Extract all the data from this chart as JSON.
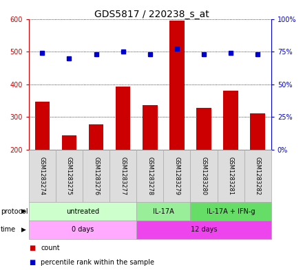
{
  "title": "GDS5817 / 220238_s_at",
  "samples": [
    "GSM1283274",
    "GSM1283275",
    "GSM1283276",
    "GSM1283277",
    "GSM1283278",
    "GSM1283279",
    "GSM1283280",
    "GSM1283281",
    "GSM1283282"
  ],
  "counts": [
    347,
    243,
    278,
    392,
    337,
    594,
    327,
    381,
    310
  ],
  "percentiles": [
    74,
    70,
    73,
    75,
    73,
    77,
    73,
    74,
    73
  ],
  "ylim_left": [
    200,
    600
  ],
  "ylim_right": [
    0,
    100
  ],
  "yticks_left": [
    200,
    300,
    400,
    500,
    600
  ],
  "yticks_right": [
    0,
    25,
    50,
    75,
    100
  ],
  "bar_color": "#cc0000",
  "dot_color": "#0000cc",
  "bar_bottom": 200,
  "protocol_groups": [
    {
      "label": "untreated",
      "start": 0,
      "end": 4,
      "color": "#ccffcc",
      "border": "#aaaaaa"
    },
    {
      "label": "IL-17A",
      "start": 4,
      "end": 6,
      "color": "#99ee99",
      "border": "#aaaaaa"
    },
    {
      "label": "IL-17A + IFN-g",
      "start": 6,
      "end": 9,
      "color": "#66dd66",
      "border": "#aaaaaa"
    }
  ],
  "time_groups": [
    {
      "label": "0 days",
      "start": 0,
      "end": 4,
      "color": "#ffaaff",
      "border": "#aaaaaa"
    },
    {
      "label": "12 days",
      "start": 4,
      "end": 9,
      "color": "#ee44ee",
      "border": "#aaaaaa"
    }
  ],
  "sample_box_color": "#dddddd",
  "sample_box_border": "#aaaaaa",
  "grid_color": "#000000",
  "background_color": "#ffffff",
  "title_fontsize": 10,
  "tick_fontsize": 7,
  "label_fontsize": 7.5
}
